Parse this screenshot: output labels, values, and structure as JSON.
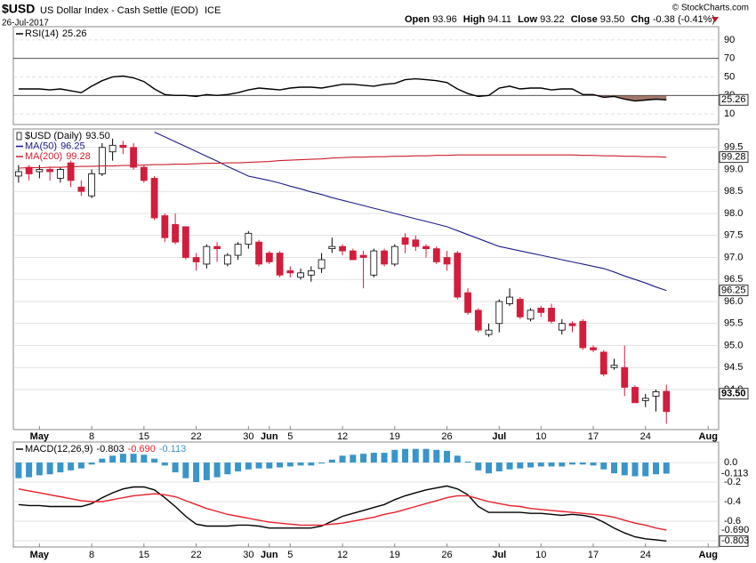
{
  "header": {
    "symbol": "$USD",
    "name": "US Dollar Index - Cash Settle (EOD)",
    "exchange": "ICE",
    "date": "26-Jul-2017",
    "source": "© StockCharts.com",
    "stats": [
      {
        "label": "Open",
        "value": "93.96"
      },
      {
        "label": "High",
        "value": "94.11"
      },
      {
        "label": "Low",
        "value": "93.22"
      },
      {
        "label": "Close",
        "value": "93.50"
      },
      {
        "label": "Chg",
        "value": "-0.38 (-0.41%)"
      }
    ]
  },
  "chart_data": [
    {
      "type": "line",
      "ylim": [
        -1.4,
        104.3
      ],
      "yticks": [
        10,
        30,
        50,
        70,
        90
      ],
      "bands": [
        30,
        70
      ],
      "fill_color": "#a0766c",
      "series": [
        {
          "name": "RSI(14)",
          "color": "#000000",
          "last_label": "25.26",
          "values": [
            37,
            37,
            37,
            36,
            37,
            35,
            33,
            40,
            46,
            50,
            51,
            49,
            45,
            37,
            31,
            30,
            30,
            29,
            31,
            30,
            31,
            33,
            36,
            38,
            37,
            36,
            38,
            39,
            39,
            38,
            40,
            42,
            42,
            41,
            40,
            42,
            43,
            47,
            48,
            47,
            46,
            44,
            37,
            32,
            29,
            30,
            38,
            40,
            37,
            38,
            38,
            36,
            37,
            37,
            31,
            31,
            28,
            29,
            26,
            24,
            25,
            26,
            25.26
          ]
        }
      ]
    },
    {
      "type": "candlestick",
      "up_color": "#ffffff",
      "down_color": "#d21d3c",
      "x": [
        0,
        1,
        2,
        3,
        4,
        5,
        6,
        7,
        8,
        9,
        10,
        11,
        12,
        13,
        14,
        15,
        16,
        17,
        18,
        19,
        20,
        21,
        22,
        23,
        24,
        25,
        26,
        27,
        28,
        29,
        30,
        31,
        32,
        33,
        34,
        35,
        36,
        37,
        38,
        39,
        40,
        41,
        42,
        43,
        44,
        45,
        46,
        47,
        48,
        49,
        50,
        51,
        52,
        53,
        54,
        55,
        56,
        57,
        58,
        59,
        60,
        61,
        62
      ],
      "xlim": [
        -0.5,
        67
      ],
      "xticks": [
        {
          "value": 2,
          "label": "May"
        },
        {
          "value": 7,
          "label": "8"
        },
        {
          "value": 12,
          "label": "15"
        },
        {
          "value": 17,
          "label": "22"
        },
        {
          "value": 22,
          "label": "30"
        },
        {
          "value": 24,
          "label": "Jun"
        },
        {
          "value": 26,
          "label": "5"
        },
        {
          "value": 31,
          "label": "12"
        },
        {
          "value": 36,
          "label": "19"
        },
        {
          "value": 41,
          "label": "26"
        },
        {
          "value": 46,
          "label": "Jul"
        },
        {
          "value": 50,
          "label": "10"
        },
        {
          "value": 55,
          "label": "17"
        },
        {
          "value": 60,
          "label": "24"
        },
        {
          "value": 66,
          "label": "Aug"
        }
      ],
      "ylim": [
        93.09,
        99.92
      ],
      "yticks": [
        {
          "value": 94,
          "label": "94.0"
        },
        94.5,
        {
          "value": 95,
          "label": "95.0"
        },
        95.5,
        {
          "value": 96,
          "label": "96.0"
        },
        96.5,
        {
          "value": 97,
          "label": "97.0"
        },
        97.5,
        {
          "value": 98,
          "label": "98.0"
        },
        98.5,
        {
          "value": 99,
          "label": "99.0"
        },
        99.5
      ],
      "series": [
        {
          "name": "$USD (Daily)",
          "last_label": "93.50",
          "open": [
            98.85,
            99.05,
            98.95,
            99.0,
            98.8,
            99.15,
            98.6,
            98.4,
            98.9,
            99.4,
            99.55,
            99.5,
            99.05,
            98.8,
            97.95,
            97.75,
            97.7,
            97.0,
            96.85,
            97.25,
            96.85,
            97.05,
            97.3,
            97.35,
            97.1,
            97.1,
            96.7,
            96.55,
            96.6,
            96.75,
            97.2,
            97.25,
            97.15,
            97.05,
            96.6,
            97.15,
            96.85,
            97.45,
            97.4,
            97.25,
            97.2,
            97.0,
            97.1,
            96.2,
            95.8,
            95.25,
            95.5,
            95.95,
            96.05,
            95.6,
            95.85,
            95.85,
            95.35,
            95.5,
            95.55,
            94.95,
            94.85,
            94.5,
            94.5,
            94.05,
            93.75,
            93.85,
            93.96
          ],
          "high": [
            99.1,
            99.1,
            99.1,
            99.05,
            99.05,
            99.2,
            98.75,
            99.0,
            99.6,
            99.7,
            99.65,
            99.6,
            99.1,
            98.85,
            98.0,
            98.0,
            97.7,
            97.1,
            97.3,
            97.35,
            97.1,
            97.35,
            97.6,
            97.4,
            97.15,
            97.15,
            96.8,
            96.75,
            96.8,
            97.1,
            97.45,
            97.3,
            97.2,
            97.15,
            97.2,
            97.2,
            97.3,
            97.55,
            97.5,
            97.3,
            97.25,
            97.15,
            97.15,
            96.3,
            95.85,
            95.5,
            96.05,
            96.3,
            96.1,
            95.85,
            95.9,
            95.95,
            95.6,
            95.55,
            95.6,
            95.0,
            94.9,
            94.7,
            95.0,
            94.1,
            93.9,
            94.0,
            94.11
          ],
          "low": [
            98.7,
            98.75,
            98.8,
            98.75,
            98.7,
            98.6,
            98.4,
            98.35,
            98.85,
            99.2,
            99.35,
            99.0,
            98.7,
            97.85,
            97.35,
            97.3,
            96.95,
            96.7,
            96.75,
            96.9,
            96.8,
            96.95,
            97.2,
            96.8,
            96.85,
            96.55,
            96.55,
            96.5,
            96.45,
            96.65,
            97.1,
            97.05,
            96.95,
            96.3,
            96.55,
            96.8,
            96.8,
            97.1,
            97.15,
            97.0,
            96.85,
            96.7,
            96.05,
            95.7,
            95.3,
            95.2,
            95.3,
            95.9,
            95.6,
            95.55,
            95.65,
            95.5,
            95.25,
            95.3,
            94.9,
            94.85,
            94.3,
            94.45,
            93.85,
            93.7,
            93.6,
            93.5,
            93.22
          ],
          "close": [
            98.95,
            98.9,
            99.0,
            98.95,
            99.0,
            98.75,
            98.5,
            98.9,
            99.5,
            99.55,
            99.5,
            99.05,
            98.75,
            97.9,
            97.45,
            97.35,
            97.0,
            96.9,
            97.25,
            97.2,
            97.05,
            97.3,
            97.55,
            96.85,
            96.9,
            96.6,
            96.65,
            96.65,
            96.7,
            96.95,
            97.25,
            97.15,
            96.95,
            97.0,
            97.15,
            96.85,
            97.25,
            97.3,
            97.25,
            97.2,
            96.9,
            96.85,
            96.1,
            95.75,
            95.35,
            95.35,
            96.0,
            96.1,
            95.65,
            95.8,
            95.75,
            95.55,
            95.5,
            95.45,
            94.95,
            94.9,
            94.35,
            94.55,
            94.05,
            93.7,
            93.8,
            93.95,
            93.5
          ]
        },
        {
          "name": "MA(50)",
          "color": "#1c1c8a",
          "last_label": "96.25",
          "values": [
            null,
            null,
            null,
            null,
            null,
            null,
            null,
            null,
            null,
            null,
            null,
            null,
            null,
            99.85,
            99.74,
            99.63,
            99.52,
            99.41,
            99.3,
            99.19,
            99.07,
            98.96,
            98.85,
            98.8,
            98.75,
            98.69,
            98.62,
            98.56,
            98.49,
            98.43,
            98.36,
            98.3,
            98.24,
            98.18,
            98.12,
            98.06,
            98.0,
            97.94,
            97.88,
            97.82,
            97.76,
            97.7,
            97.61,
            97.52,
            97.43,
            97.34,
            97.25,
            97.2,
            97.15,
            97.1,
            97.05,
            97.0,
            96.95,
            96.9,
            96.85,
            96.8,
            96.75,
            96.67,
            96.58,
            96.5,
            96.42,
            96.33,
            96.25
          ]
        },
        {
          "name": "MA(200)",
          "color": "#cc1f2d",
          "last_label": "99.28",
          "values": [
            99.03,
            99.04,
            99.04,
            99.05,
            99.05,
            99.06,
            99.07,
            99.07,
            99.08,
            99.08,
            99.09,
            99.09,
            99.1,
            99.11,
            99.11,
            99.12,
            99.12,
            99.13,
            99.14,
            99.14,
            99.15,
            99.15,
            99.16,
            99.17,
            99.18,
            99.2,
            99.21,
            99.22,
            99.23,
            99.24,
            99.26,
            99.27,
            99.28,
            99.28,
            99.29,
            99.29,
            99.3,
            99.3,
            99.31,
            99.31,
            99.32,
            99.32,
            99.33,
            99.33,
            99.33,
            99.33,
            99.33,
            99.33,
            99.33,
            99.33,
            99.33,
            99.33,
            99.33,
            99.33,
            99.32,
            99.32,
            99.31,
            99.31,
            99.3,
            99.3,
            99.29,
            99.29,
            99.28
          ]
        }
      ]
    },
    {
      "type": "line",
      "ylim": [
        -0.864,
        0.21
      ],
      "yticks": [
        {
          "value": 0,
          "label": "0.0"
        },
        -0.2,
        -0.4,
        -0.6,
        -0.8
      ],
      "title": "MACD(12,26,9)",
      "series": [
        {
          "color": "#000000",
          "last_label": "-0.803",
          "values": [
            -0.43,
            -0.44,
            -0.44,
            -0.45,
            -0.45,
            -0.45,
            -0.45,
            -0.42,
            -0.36,
            -0.31,
            -0.27,
            -0.25,
            -0.25,
            -0.28,
            -0.36,
            -0.45,
            -0.55,
            -0.63,
            -0.65,
            -0.65,
            -0.65,
            -0.64,
            -0.64,
            -0.65,
            -0.67,
            -0.67,
            -0.67,
            -0.67,
            -0.67,
            -0.65,
            -0.6,
            -0.55,
            -0.52,
            -0.49,
            -0.46,
            -0.43,
            -0.38,
            -0.34,
            -0.31,
            -0.28,
            -0.26,
            -0.24,
            -0.27,
            -0.33,
            -0.45,
            -0.51,
            -0.51,
            -0.51,
            -0.51,
            -0.52,
            -0.52,
            -0.53,
            -0.54,
            -0.53,
            -0.54,
            -0.56,
            -0.61,
            -0.67,
            -0.72,
            -0.76,
            -0.78,
            -0.79,
            -0.803
          ]
        },
        {
          "color": "#e8202a",
          "last_label": "-0.690",
          "values": [
            -0.27,
            -0.29,
            -0.31,
            -0.33,
            -0.35,
            -0.37,
            -0.39,
            -0.4,
            -0.4,
            -0.38,
            -0.36,
            -0.34,
            -0.33,
            -0.32,
            -0.33,
            -0.35,
            -0.39,
            -0.43,
            -0.47,
            -0.5,
            -0.53,
            -0.55,
            -0.57,
            -0.59,
            -0.61,
            -0.62,
            -0.63,
            -0.64,
            -0.64,
            -0.64,
            -0.63,
            -0.62,
            -0.6,
            -0.58,
            -0.56,
            -0.53,
            -0.51,
            -0.48,
            -0.45,
            -0.42,
            -0.39,
            -0.36,
            -0.34,
            -0.34,
            -0.37,
            -0.4,
            -0.42,
            -0.44,
            -0.45,
            -0.47,
            -0.48,
            -0.49,
            -0.5,
            -0.51,
            -0.52,
            -0.53,
            -0.54,
            -0.56,
            -0.59,
            -0.62,
            -0.64,
            -0.67,
            -0.69
          ]
        },
        {
          "color": "#3a95c8",
          "style": "bar",
          "last_label": "-0.113",
          "values": [
            -0.16,
            -0.15,
            -0.13,
            -0.12,
            -0.1,
            -0.08,
            -0.06,
            -0.02,
            0.04,
            0.07,
            0.09,
            0.09,
            0.08,
            0.04,
            -0.03,
            -0.1,
            -0.16,
            -0.2,
            -0.18,
            -0.15,
            -0.12,
            -0.09,
            -0.07,
            -0.06,
            -0.06,
            -0.05,
            -0.04,
            -0.03,
            -0.03,
            -0.01,
            0.03,
            0.07,
            0.08,
            0.09,
            0.1,
            0.1,
            0.13,
            0.14,
            0.14,
            0.14,
            0.13,
            0.12,
            0.07,
            0.01,
            -0.08,
            -0.11,
            -0.09,
            -0.07,
            -0.06,
            -0.05,
            -0.04,
            -0.04,
            -0.04,
            -0.02,
            -0.02,
            -0.03,
            -0.07,
            -0.11,
            -0.13,
            -0.14,
            -0.14,
            -0.12,
            -0.113
          ]
        }
      ]
    }
  ]
}
